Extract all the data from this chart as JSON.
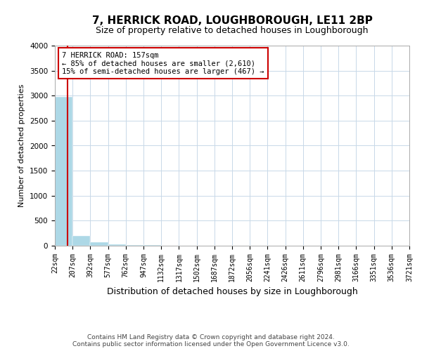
{
  "title": "7, HERRICK ROAD, LOUGHBOROUGH, LE11 2BP",
  "subtitle": "Size of property relative to detached houses in Loughborough",
  "xlabel": "Distribution of detached houses by size in Loughborough",
  "ylabel": "Number of detached properties",
  "footer_line1": "Contains HM Land Registry data © Crown copyright and database right 2024.",
  "footer_line2": "Contains public sector information licensed under the Open Government Licence v3.0.",
  "annotation_line1": "7 HERRICK ROAD: 157sqm",
  "annotation_line2": "← 85% of detached houses are smaller (2,610)",
  "annotation_line3": "15% of semi-detached houses are larger (467) →",
  "bar_edges": [
    22,
    207,
    392,
    577,
    762,
    947,
    1132,
    1317,
    1502,
    1687,
    1872,
    2056,
    2241,
    2426,
    2611,
    2796,
    2981,
    3166,
    3351,
    3536,
    3721
  ],
  "bar_heights": [
    2970,
    200,
    70,
    30,
    15,
    10,
    7,
    5,
    3,
    2,
    2,
    1,
    1,
    1,
    1,
    0,
    0,
    0,
    0,
    0
  ],
  "bar_color": "#add8e6",
  "property_line_x": 157,
  "property_line_color": "#cc0000",
  "ylim": [
    0,
    4000
  ],
  "yticks": [
    0,
    500,
    1000,
    1500,
    2000,
    2500,
    3000,
    3500,
    4000
  ],
  "background_color": "#ffffff",
  "grid_color": "#c8d8e8",
  "title_fontsize": 11,
  "subtitle_fontsize": 9,
  "tick_fontsize": 7,
  "ylabel_fontsize": 8,
  "xlabel_fontsize": 9,
  "footer_fontsize": 6.5
}
